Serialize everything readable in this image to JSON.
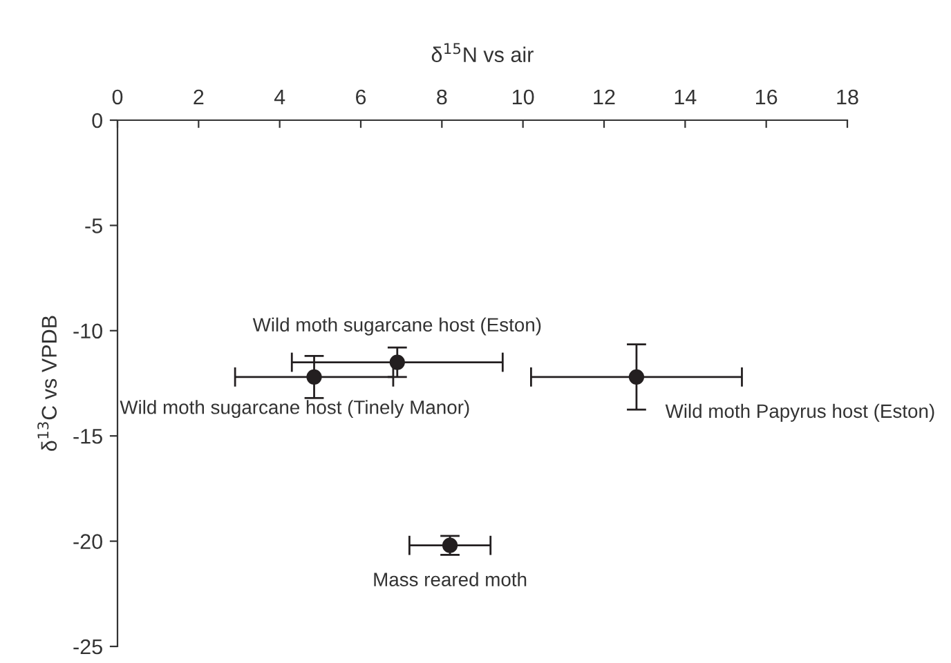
{
  "chart_data": {
    "type": "scatter",
    "xlabel": "δ$^{15}$N vs air",
    "ylabel": "δ$^{13}$C vs VPDB",
    "xlim": [
      0,
      18
    ],
    "xticks": [
      0,
      2,
      4,
      6,
      8,
      10,
      12,
      14,
      16,
      18
    ],
    "ylim": [
      -25,
      0
    ],
    "yticks": [
      -25,
      -20,
      -15,
      -10,
      -5,
      0
    ],
    "grid": false,
    "legend": false,
    "marker": "circle",
    "series": [
      {
        "color": "#231f20",
        "x": [
          4.85,
          6.9,
          12.8,
          8.2
        ],
        "values": [
          -12.2,
          -11.5,
          -12.2,
          -20.2
        ],
        "xerrors": [
          1.95,
          2.6,
          2.6,
          1.0
        ],
        "errors": [
          1.0,
          0.7,
          1.55,
          0.45
        ]
      }
    ],
    "annotations": [
      {
        "text": "Wild moth sugarcane host (Eston)",
        "x": 6.9,
        "y": -11.5
      },
      {
        "text": "Wild moth sugarcane host (Tinely Manor)",
        "x": 4.85,
        "y": -12.2
      },
      {
        "text": "Wild moth Papyrus host (Eston)",
        "x": 12.8,
        "y": -12.2
      },
      {
        "text": "Mass reared moth",
        "x": 8.2,
        "y": -20.2
      }
    ]
  }
}
